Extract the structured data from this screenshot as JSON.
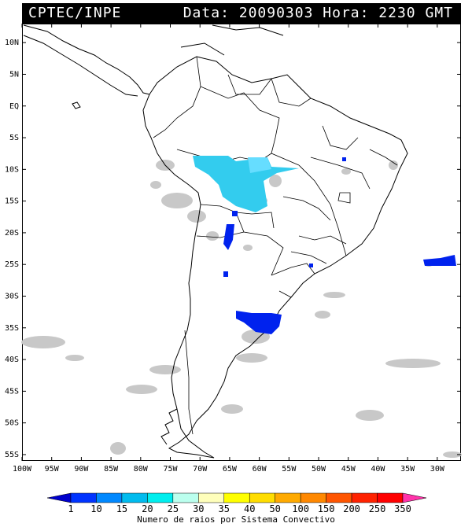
{
  "header": {
    "left": "CPTEC/INPE",
    "right": "Data: 20090303 Hora: 2230 GMT"
  },
  "axes": {
    "lat_labels": [
      "10N",
      "5N",
      "EQ",
      "5S",
      "10S",
      "15S",
      "20S",
      "25S",
      "30S",
      "35S",
      "40S",
      "45S",
      "50S",
      "55S"
    ],
    "lat_values": [
      10,
      5,
      0,
      -5,
      -10,
      -15,
      -20,
      -25,
      -30,
      -35,
      -40,
      -45,
      -50,
      -55
    ],
    "lon_labels": [
      "100W",
      "95W",
      "90W",
      "85W",
      "80W",
      "75W",
      "70W",
      "65W",
      "60W",
      "55W",
      "50W",
      "45W",
      "40W",
      "35W",
      "30W"
    ],
    "lon_values": [
      -100,
      -95,
      -90,
      -85,
      -80,
      -75,
      -70,
      -65,
      -60,
      -55,
      -50,
      -45,
      -40,
      -35,
      -30
    ],
    "lon_range": [
      -100,
      -26
    ],
    "lat_range": [
      -56,
      13
    ]
  },
  "legend": {
    "caption": "Numero de raios por Sistema Convectivo",
    "values": [
      "1",
      "10",
      "15",
      "20",
      "25",
      "30",
      "35",
      "40",
      "50",
      "100",
      "150",
      "200",
      "250",
      "350"
    ],
    "colors": [
      "#0000cc",
      "#0033ff",
      "#0088ff",
      "#00bbee",
      "#00eeee",
      "#bbffee",
      "#ffffbb",
      "#ffff00",
      "#ffdd00",
      "#ffaa00",
      "#ff8800",
      "#ff5500",
      "#ff2200",
      "#ff0000",
      "#ff33aa"
    ]
  },
  "colors": {
    "cloud_gray": "#c8c8c8",
    "cyan": "#33ccee",
    "light_blue": "#66ddff",
    "blue": "#0022ee"
  }
}
